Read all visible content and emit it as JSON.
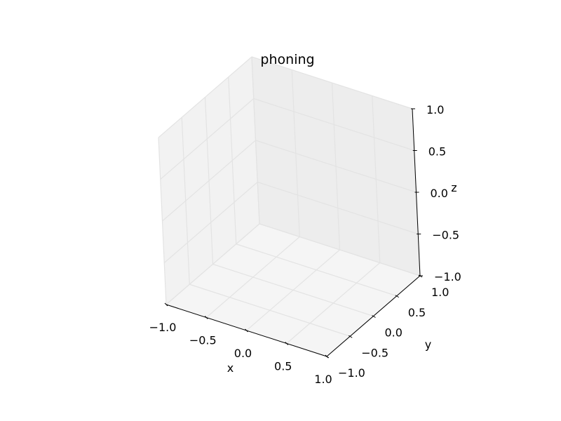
{
  "chart_data": {
    "type": "scatter",
    "projection": "3d",
    "title": "phoning",
    "xlabel": "x",
    "ylabel": "y",
    "zlabel": "z",
    "xlim": [
      -1.0,
      1.0
    ],
    "ylim": [
      -1.0,
      1.0
    ],
    "zlim": [
      -1.0,
      1.0
    ],
    "xticks": [
      "−1.0",
      "−0.5",
      "0.0",
      "0.5",
      "1.0"
    ],
    "yticks": [
      "−1.0",
      "−0.5",
      "0.0",
      "0.5",
      "1.0"
    ],
    "zticks": [
      "−1.0",
      "−0.5",
      "0.0",
      "0.5",
      "1.0"
    ],
    "grid": true,
    "series": [],
    "pane_colors": {
      "left": "#f2f2f2",
      "back": "#ededed",
      "floor": "#f5f5f5"
    },
    "grid_color": "#e3e3e3"
  }
}
